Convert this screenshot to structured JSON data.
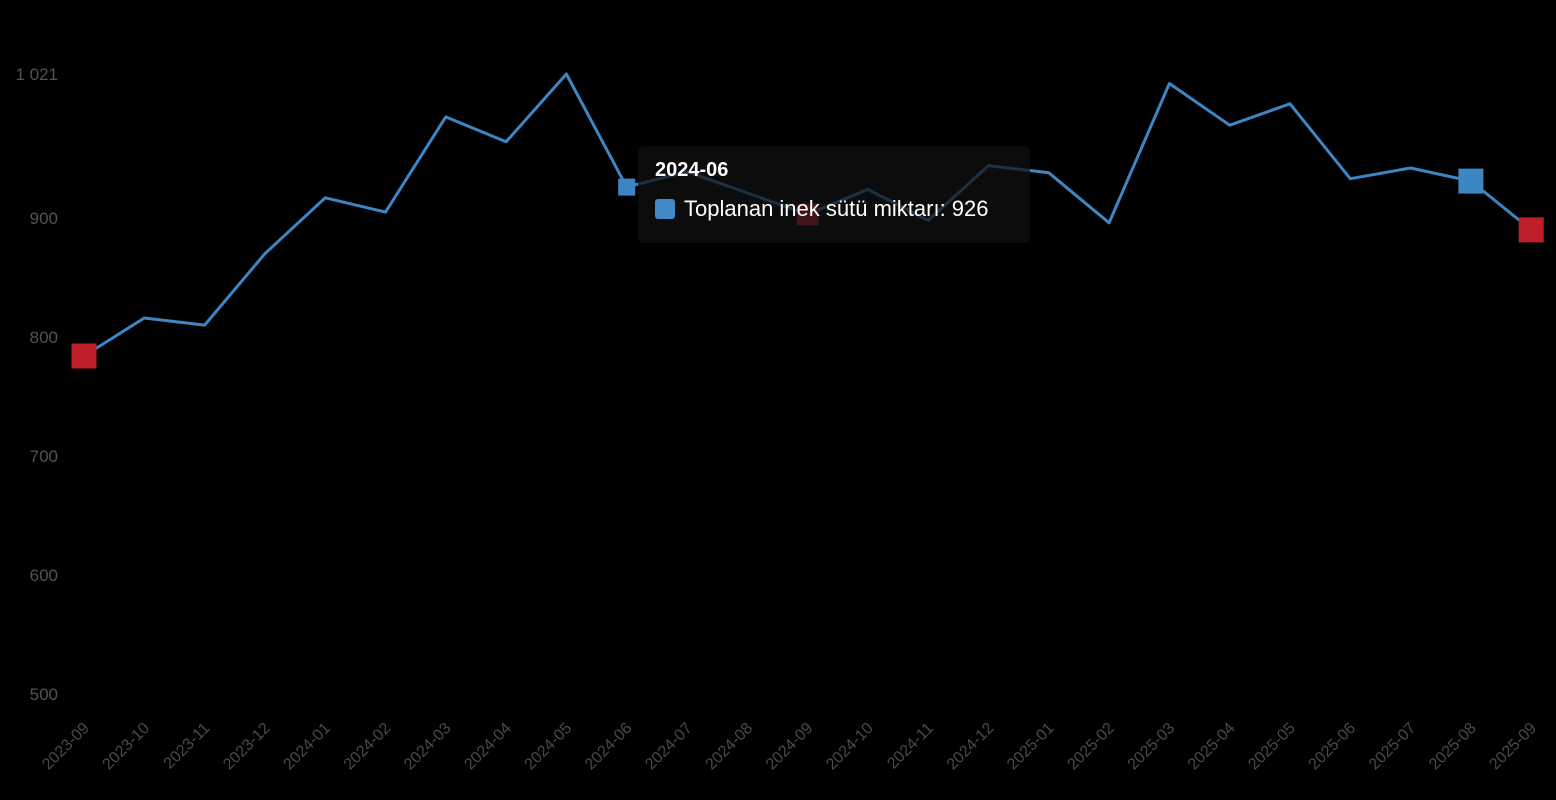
{
  "chart_data": {
    "type": "line",
    "title": "",
    "xlabel": "",
    "ylabel": "",
    "x": [
      "2023-09",
      "2023-10",
      "2023-11",
      "2023-12",
      "2024-01",
      "2024-02",
      "2024-03",
      "2024-04",
      "2024-05",
      "2024-06",
      "2024-07",
      "2024-08",
      "2024-09",
      "2024-10",
      "2024-11",
      "2024-12",
      "2025-01",
      "2025-02",
      "2025-03",
      "2025-04",
      "2025-05",
      "2025-06",
      "2025-07",
      "2025-08",
      "2025-09"
    ],
    "series": [
      {
        "name": "Toplanan inek sütü miktarı",
        "color": "#3d86c4",
        "values": [
          784,
          816,
          810,
          870,
          917,
          905,
          985,
          964,
          1021,
          926,
          939,
          921,
          903,
          924,
          898,
          944,
          938,
          896,
          1013,
          978,
          996,
          933,
          942,
          931,
          890
        ]
      }
    ],
    "ylim": [
      500,
      1021
    ],
    "y_axis": {
      "ticks": [
        {
          "value": 500,
          "label": "500"
        },
        {
          "value": 600,
          "label": "600"
        },
        {
          "value": 700,
          "label": "700"
        },
        {
          "value": 800,
          "label": "800"
        },
        {
          "value": 900,
          "label": "900"
        },
        {
          "value": 1021,
          "label": "1 021"
        }
      ]
    },
    "grid": false,
    "legend_position": "none",
    "background": "#000000",
    "colors": {
      "red": "#bf1f28",
      "blue": "#3d86c4"
    },
    "markers": [
      {
        "month": "2023-09",
        "month_index": 0,
        "color": "red",
        "size": 25,
        "role": "endpoint"
      },
      {
        "month": "2024-06",
        "month_index": 9,
        "color": "blue",
        "size": 17,
        "role": "hovered-point"
      },
      {
        "month": "2024-09",
        "month_index": 12,
        "color": "red",
        "size": 22,
        "role": "highlight"
      },
      {
        "month": "2025-08",
        "month_index": 23,
        "color": "blue",
        "size": 25,
        "role": "highlight"
      },
      {
        "month": "2025-09",
        "month_index": 24,
        "color": "red",
        "size": 25,
        "role": "endpoint"
      }
    ]
  },
  "tooltip": {
    "title": "2024-06",
    "series_label": "Toplanan inek sütü miktarı",
    "value": "926",
    "text": "Toplanan inek sütü miktarı: 926",
    "swatch_color": "#4189c9",
    "text_color": "#ffffff"
  }
}
